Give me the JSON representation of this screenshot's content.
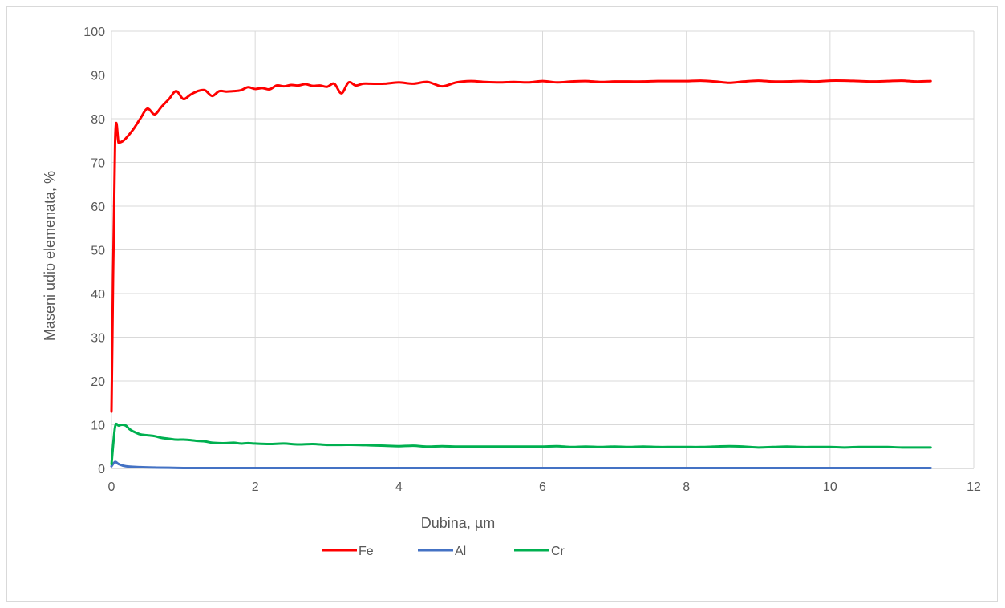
{
  "chart_data": {
    "type": "line",
    "title": "",
    "xlabel": "Dubina, µm",
    "ylabel": "Maseni udio elemenata, %",
    "xlim": [
      0,
      12
    ],
    "ylim": [
      0,
      100
    ],
    "x_ticks": [
      0,
      2,
      4,
      6,
      8,
      10,
      12
    ],
    "y_ticks": [
      0,
      10,
      20,
      30,
      40,
      50,
      60,
      70,
      80,
      90,
      100
    ],
    "grid": "on",
    "legend_position": "bottom",
    "series": [
      {
        "name": "Fe",
        "color": "#ff0000",
        "x": [
          0,
          0.05,
          0.1,
          0.15,
          0.2,
          0.3,
          0.4,
          0.5,
          0.6,
          0.7,
          0.8,
          0.9,
          1.0,
          1.1,
          1.2,
          1.3,
          1.4,
          1.5,
          1.6,
          1.7,
          1.8,
          1.9,
          2.0,
          2.1,
          2.2,
          2.3,
          2.4,
          2.5,
          2.6,
          2.7,
          2.8,
          2.9,
          3.0,
          3.1,
          3.2,
          3.3,
          3.4,
          3.5,
          3.6,
          3.8,
          4.0,
          4.2,
          4.4,
          4.6,
          4.8,
          5.0,
          5.2,
          5.4,
          5.6,
          5.8,
          6.0,
          6.2,
          6.4,
          6.6,
          6.8,
          7.0,
          7.2,
          7.4,
          7.6,
          7.8,
          8.0,
          8.2,
          8.4,
          8.6,
          8.8,
          9.0,
          9.2,
          9.4,
          9.6,
          9.8,
          10.0,
          10.2,
          10.4,
          10.6,
          10.8,
          11.0,
          11.2,
          11.4
        ],
        "values": [
          13,
          74.5,
          74.5,
          74.8,
          75.5,
          77.5,
          80,
          82.3,
          81,
          82.8,
          84.5,
          86.3,
          84.5,
          85.5,
          86.3,
          86.5,
          85.2,
          86.3,
          86.2,
          86.3,
          86.5,
          87.2,
          86.8,
          87.0,
          86.7,
          87.6,
          87.4,
          87.7,
          87.6,
          87.9,
          87.5,
          87.6,
          87.3,
          88.0,
          85.8,
          88.3,
          87.6,
          88.0,
          88.0,
          88.0,
          88.3,
          88.0,
          88.4,
          87.4,
          88.3,
          88.6,
          88.4,
          88.3,
          88.4,
          88.3,
          88.6,
          88.3,
          88.5,
          88.6,
          88.4,
          88.5,
          88.5,
          88.5,
          88.6,
          88.6,
          88.6,
          88.7,
          88.5,
          88.2,
          88.5,
          88.7,
          88.5,
          88.5,
          88.6,
          88.5,
          88.7,
          88.7,
          88.6,
          88.5,
          88.6,
          88.7,
          88.5,
          88.6
        ]
      },
      {
        "name": "Al",
        "color": "#4472c4",
        "x": [
          0,
          0.05,
          0.1,
          0.2,
          0.4,
          0.6,
          0.8,
          1.0,
          1.5,
          2.0,
          3.0,
          4.0,
          5.0,
          6.0,
          7.0,
          8.0,
          9.0,
          10.0,
          11.0,
          11.4
        ],
        "values": [
          0.5,
          1.5,
          1.0,
          0.5,
          0.3,
          0.2,
          0.15,
          0.1,
          0.1,
          0.1,
          0.1,
          0.1,
          0.1,
          0.1,
          0.1,
          0.1,
          0.1,
          0.1,
          0.1,
          0.1
        ]
      },
      {
        "name": "Cr",
        "color": "#00b050",
        "x": [
          0,
          0.05,
          0.1,
          0.15,
          0.2,
          0.25,
          0.3,
          0.4,
          0.5,
          0.6,
          0.7,
          0.8,
          0.9,
          1.0,
          1.1,
          1.2,
          1.3,
          1.4,
          1.5,
          1.6,
          1.7,
          1.8,
          1.9,
          2.0,
          2.2,
          2.4,
          2.6,
          2.8,
          3.0,
          3.2,
          3.4,
          3.6,
          3.8,
          4.0,
          4.2,
          4.4,
          4.6,
          4.8,
          5.0,
          5.2,
          5.4,
          5.6,
          5.8,
          6.0,
          6.2,
          6.4,
          6.6,
          6.8,
          7.0,
          7.2,
          7.4,
          7.6,
          7.8,
          8.0,
          8.2,
          8.4,
          8.6,
          8.8,
          9.0,
          9.2,
          9.4,
          9.6,
          9.8,
          10.0,
          10.2,
          10.4,
          10.6,
          10.8,
          11.0,
          11.2,
          11.4
        ],
        "values": [
          1,
          9.5,
          9.8,
          10.0,
          9.8,
          9.0,
          8.5,
          7.8,
          7.6,
          7.4,
          7.0,
          6.8,
          6.6,
          6.6,
          6.5,
          6.3,
          6.2,
          5.9,
          5.8,
          5.8,
          5.9,
          5.7,
          5.8,
          5.7,
          5.6,
          5.7,
          5.5,
          5.6,
          5.4,
          5.4,
          5.4,
          5.3,
          5.2,
          5.1,
          5.2,
          5.0,
          5.1,
          5.0,
          5.0,
          5.0,
          5.0,
          5.0,
          5.0,
          5.0,
          5.1,
          4.9,
          5.0,
          4.9,
          5.0,
          4.9,
          5.0,
          4.9,
          4.9,
          4.9,
          4.9,
          5.0,
          5.1,
          5.0,
          4.8,
          4.9,
          5.0,
          4.9,
          4.9,
          4.9,
          4.8,
          4.9,
          4.9,
          4.9,
          4.8,
          4.8,
          4.8
        ]
      }
    ]
  }
}
